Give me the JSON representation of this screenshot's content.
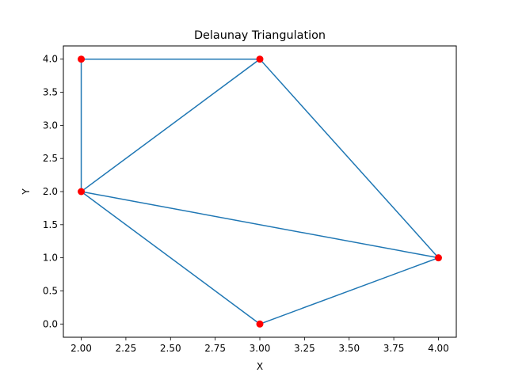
{
  "chart_data": {
    "type": "line",
    "title": "Delaunay Triangulation",
    "xlabel": "X",
    "ylabel": "Y",
    "xlim": [
      1.9,
      4.1
    ],
    "ylim": [
      -0.2,
      4.2
    ],
    "x_ticks": [
      2.0,
      2.25,
      2.5,
      2.75,
      3.0,
      3.25,
      3.5,
      3.75,
      4.0
    ],
    "x_tick_labels": [
      "2.00",
      "2.25",
      "2.50",
      "2.75",
      "3.00",
      "3.25",
      "3.50",
      "3.75",
      "4.00"
    ],
    "y_ticks": [
      0.0,
      0.5,
      1.0,
      1.5,
      2.0,
      2.5,
      3.0,
      3.5,
      4.0
    ],
    "y_tick_labels": [
      "0.0",
      "0.5",
      "1.0",
      "1.5",
      "2.0",
      "2.5",
      "3.0",
      "3.5",
      "4.0"
    ],
    "grid": false,
    "points": [
      {
        "x": 2,
        "y": 4
      },
      {
        "x": 3,
        "y": 4
      },
      {
        "x": 2,
        "y": 2
      },
      {
        "x": 4,
        "y": 1
      },
      {
        "x": 3,
        "y": 0
      }
    ],
    "edges": [
      [
        [
          2,
          4
        ],
        [
          3,
          4
        ]
      ],
      [
        [
          2,
          4
        ],
        [
          2,
          2
        ]
      ],
      [
        [
          3,
          4
        ],
        [
          2,
          2
        ]
      ],
      [
        [
          3,
          4
        ],
        [
          4,
          1
        ]
      ],
      [
        [
          2,
          2
        ],
        [
          4,
          1
        ]
      ],
      [
        [
          2,
          2
        ],
        [
          3,
          0
        ]
      ],
      [
        [
          3,
          0
        ],
        [
          4,
          1
        ]
      ]
    ],
    "colors": {
      "edge": "#1f77b4",
      "point": "#ff0000"
    }
  }
}
